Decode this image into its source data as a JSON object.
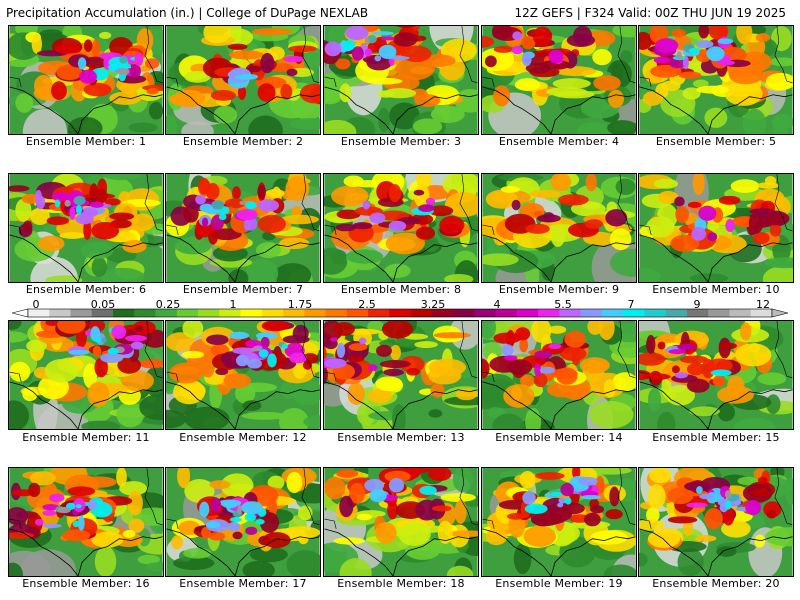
{
  "header": {
    "left": "Precipitation Accumulation (in.) | College of DuPage NEXLAB",
    "right": "12Z GEFS | F324 Valid: 00Z THU JUN 19 2025"
  },
  "caption_prefix": "Ensemble Member: ",
  "members": [
    {
      "number": "1",
      "max_level": "very-high"
    },
    {
      "number": "2",
      "max_level": "high"
    },
    {
      "number": "3",
      "max_level": "very-high"
    },
    {
      "number": "4",
      "max_level": "high"
    },
    {
      "number": "5",
      "max_level": "very-high"
    },
    {
      "number": "6",
      "max_level": "very-high"
    },
    {
      "number": "7",
      "max_level": "very-high"
    },
    {
      "number": "8",
      "max_level": "high"
    },
    {
      "number": "9",
      "max_level": "moderate"
    },
    {
      "number": "10",
      "max_level": "high"
    },
    {
      "number": "11",
      "max_level": "very-high"
    },
    {
      "number": "12",
      "max_level": "very-high"
    },
    {
      "number": "13",
      "max_level": "high"
    },
    {
      "number": "14",
      "max_level": "high"
    },
    {
      "number": "15",
      "max_level": "high"
    },
    {
      "number": "16",
      "max_level": "very-high"
    },
    {
      "number": "17",
      "max_level": "very-high"
    },
    {
      "number": "18",
      "max_level": "high"
    },
    {
      "number": "19",
      "max_level": "very-high"
    },
    {
      "number": "20",
      "max_level": "very-high"
    }
  ],
  "colorbar": {
    "labels": [
      "0",
      "0.05",
      "0.25",
      "1",
      "1.75",
      "2.5",
      "3.25",
      "4",
      "5.5",
      "7",
      "9",
      "12"
    ],
    "colors": [
      "#f0f0f0",
      "#c8c8c8",
      "#9a9a9a",
      "#6f6f6f",
      "#1e6e1e",
      "#2e8b2e",
      "#3faa3f",
      "#66cc33",
      "#99dd22",
      "#ccee11",
      "#ffff00",
      "#ffdd00",
      "#ffbb00",
      "#ff9900",
      "#ff7700",
      "#ff5500",
      "#ee2200",
      "#dd0000",
      "#bb0000",
      "#990022",
      "#880044",
      "#990077",
      "#bb0099",
      "#dd00cc",
      "#ee22ee",
      "#bb66ff",
      "#8899ff",
      "#44ccff",
      "#00eeee",
      "#22cccc",
      "#44aaaa",
      "#777777",
      "#999999",
      "#bbbbbb",
      "#dddddd"
    ]
  }
}
